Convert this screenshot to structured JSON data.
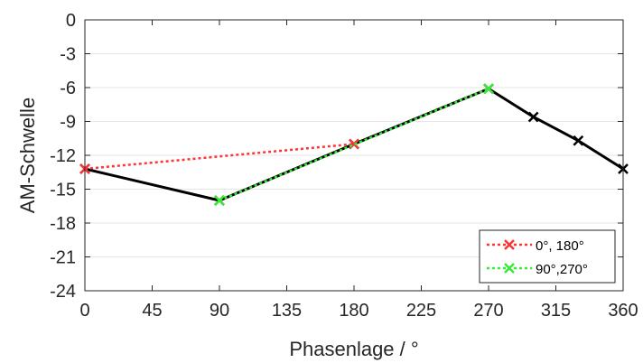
{
  "chart_data": {
    "type": "line",
    "title": "",
    "xlabel": "Phasenlage / °",
    "ylabel": "AM-Schwelle",
    "xlim": [
      0,
      360
    ],
    "ylim": [
      -24,
      0
    ],
    "xticks": [
      0,
      45,
      90,
      135,
      180,
      225,
      270,
      315,
      360
    ],
    "yticks": [
      0,
      -3,
      -6,
      -9,
      -12,
      -15,
      -18,
      -21,
      -24
    ],
    "grid": "horizontal",
    "legend_position": "bottom-right",
    "series": [
      {
        "name": "",
        "color": "#000000",
        "style": "solid",
        "marker": "x",
        "x": [
          0,
          90,
          180,
          270,
          300,
          330,
          360
        ],
        "y": [
          -13.2,
          -16.0,
          -11.0,
          -6.1,
          -8.6,
          -10.7,
          -13.2
        ]
      },
      {
        "name": "0°, 180°",
        "color": "#ff3333",
        "style": "dotted",
        "marker": "x",
        "x": [
          0,
          180
        ],
        "y": [
          -13.2,
          -11.0
        ]
      },
      {
        "name": "90°,270°",
        "color": "#33ee33",
        "style": "dotted",
        "marker": "x",
        "x": [
          90,
          270
        ],
        "y": [
          -16.0,
          -6.1
        ]
      }
    ]
  }
}
